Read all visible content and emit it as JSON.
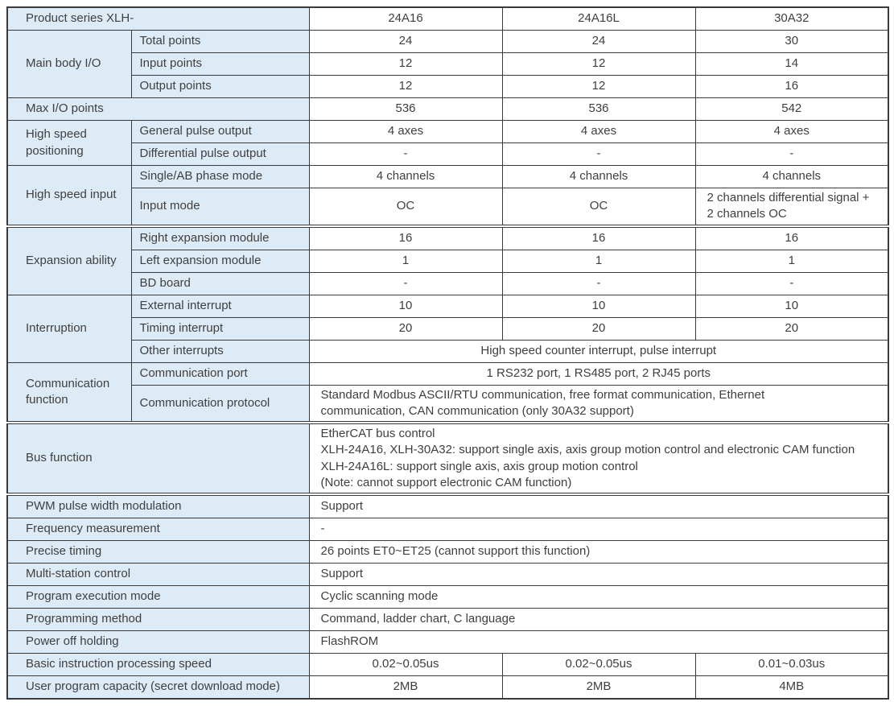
{
  "colors": {
    "label_bg": "#ddebf7",
    "border": "#3a3a3a",
    "text": "#3f3f3f"
  },
  "table": {
    "rows": [
      {
        "cells": [
          {
            "text": "Product series XLH-",
            "cs": 2,
            "kind": "label-full"
          },
          {
            "text": "24A16",
            "kind": "value"
          },
          {
            "text": "24A16L",
            "kind": "value"
          },
          {
            "text": "30A32",
            "kind": "value"
          }
        ]
      },
      {
        "cells": [
          {
            "text": "Main body I/O",
            "rs": 3,
            "kind": "label-group"
          },
          {
            "text": "Total points",
            "kind": "label-sub"
          },
          {
            "text": "24",
            "kind": "value"
          },
          {
            "text": "24",
            "kind": "value"
          },
          {
            "text": "30",
            "kind": "value"
          }
        ]
      },
      {
        "cells": [
          {
            "text": "Input points",
            "kind": "label-sub"
          },
          {
            "text": "12",
            "kind": "value"
          },
          {
            "text": "12",
            "kind": "value"
          },
          {
            "text": "14",
            "kind": "value"
          }
        ]
      },
      {
        "cells": [
          {
            "text": "Output points",
            "kind": "label-sub"
          },
          {
            "text": "12",
            "kind": "value"
          },
          {
            "text": "12",
            "kind": "value"
          },
          {
            "text": "16",
            "kind": "value"
          }
        ]
      },
      {
        "cells": [
          {
            "text": "Max I/O points",
            "cs": 2,
            "kind": "label-full"
          },
          {
            "text": "536",
            "kind": "value"
          },
          {
            "text": "536",
            "kind": "value"
          },
          {
            "text": "542",
            "kind": "value"
          }
        ]
      },
      {
        "cells": [
          {
            "text": "High speed positioning",
            "rs": 2,
            "kind": "label-group"
          },
          {
            "text": "General pulse output",
            "kind": "label-sub"
          },
          {
            "text": "4 axes",
            "kind": "value"
          },
          {
            "text": "4 axes",
            "kind": "value"
          },
          {
            "text": "4 axes",
            "kind": "value"
          }
        ]
      },
      {
        "cells": [
          {
            "text": "Differential pulse output",
            "kind": "label-sub"
          },
          {
            "text": "-",
            "kind": "value"
          },
          {
            "text": "-",
            "kind": "value"
          },
          {
            "text": "-",
            "kind": "value"
          }
        ]
      },
      {
        "cells": [
          {
            "text": "High speed input",
            "rs": 2,
            "kind": "label-group"
          },
          {
            "text": "Single/AB phase mode",
            "kind": "label-sub"
          },
          {
            "text": "4 channels",
            "kind": "value"
          },
          {
            "text": "4 channels",
            "kind": "value"
          },
          {
            "text": "4 channels",
            "kind": "value"
          }
        ]
      },
      {
        "cells": [
          {
            "text": "Input mode",
            "kind": "label-sub"
          },
          {
            "text": "OC",
            "kind": "value"
          },
          {
            "text": "OC",
            "kind": "value"
          },
          {
            "text": "2 channels differential signal +\n2 channels OC",
            "kind": "value-left"
          }
        ]
      },
      {
        "gap": true,
        "cells": [
          {
            "text": "Expansion ability",
            "rs": 3,
            "kind": "label-group"
          },
          {
            "text": "Right expansion module",
            "kind": "label-sub"
          },
          {
            "text": "16",
            "kind": "value"
          },
          {
            "text": "16",
            "kind": "value"
          },
          {
            "text": "16",
            "kind": "value"
          }
        ]
      },
      {
        "cells": [
          {
            "text": "Left expansion module",
            "kind": "label-sub"
          },
          {
            "text": "1",
            "kind": "value"
          },
          {
            "text": "1",
            "kind": "value"
          },
          {
            "text": "1",
            "kind": "value"
          }
        ]
      },
      {
        "cells": [
          {
            "text": "BD board",
            "kind": "label-sub"
          },
          {
            "text": "-",
            "kind": "value"
          },
          {
            "text": "-",
            "kind": "value"
          },
          {
            "text": "-",
            "kind": "value"
          }
        ]
      },
      {
        "cells": [
          {
            "text": "Interruption",
            "rs": 3,
            "kind": "label-group"
          },
          {
            "text": "External interrupt",
            "kind": "label-sub"
          },
          {
            "text": "10",
            "kind": "value"
          },
          {
            "text": "10",
            "kind": "value"
          },
          {
            "text": "10",
            "kind": "value"
          }
        ]
      },
      {
        "cells": [
          {
            "text": "Timing interrupt",
            "kind": "label-sub"
          },
          {
            "text": "20",
            "kind": "value"
          },
          {
            "text": "20",
            "kind": "value"
          },
          {
            "text": "20",
            "kind": "value"
          }
        ]
      },
      {
        "cells": [
          {
            "text": "Other interrupts",
            "kind": "label-sub"
          },
          {
            "text": "High speed counter interrupt, pulse interrupt",
            "cs": 3,
            "kind": "value"
          }
        ]
      },
      {
        "cells": [
          {
            "text": "Communication function",
            "rs": 2,
            "kind": "label-group"
          },
          {
            "text": "Communication port",
            "kind": "label-sub"
          },
          {
            "text": "1 RS232 port, 1 RS485 port, 2 RJ45 ports",
            "cs": 3,
            "kind": "value"
          }
        ]
      },
      {
        "cells": [
          {
            "text": "Communication protocol",
            "kind": "label-sub"
          },
          {
            "text": "Standard Modbus ASCII/RTU communication, free format communication, Ethernet\ncommunication, CAN communication (only 30A32 support)",
            "cs": 3,
            "kind": "value-left"
          }
        ]
      },
      {
        "gap": true,
        "cells": [
          {
            "text": "Bus function",
            "cs": 2,
            "kind": "label-full"
          },
          {
            "text": "EtherCAT bus control\nXLH-24A16, XLH-30A32: support single axis, axis group motion control and electronic CAM function\nXLH-24A16L: support single axis, axis group motion control\n(Note: cannot support electronic CAM function)",
            "cs": 3,
            "kind": "value-left"
          }
        ]
      },
      {
        "gap": true,
        "cells": [
          {
            "text": "PWM pulse width modulation",
            "cs": 2,
            "kind": "label-full"
          },
          {
            "text": "Support",
            "cs": 3,
            "kind": "value-left"
          }
        ]
      },
      {
        "cells": [
          {
            "text": "Frequency measurement",
            "cs": 2,
            "kind": "label-full"
          },
          {
            "text": "-",
            "cs": 3,
            "kind": "value-left"
          }
        ]
      },
      {
        "cells": [
          {
            "text": "Precise timing",
            "cs": 2,
            "kind": "label-full"
          },
          {
            "text": "26 points ET0~ET25 (cannot support this function)",
            "cs": 3,
            "kind": "value-left"
          }
        ]
      },
      {
        "cells": [
          {
            "text": "Multi-station control",
            "cs": 2,
            "kind": "label-full"
          },
          {
            "text": "Support",
            "cs": 3,
            "kind": "value-left"
          }
        ]
      },
      {
        "cells": [
          {
            "text": "Program execution mode",
            "cs": 2,
            "kind": "label-full"
          },
          {
            "text": "Cyclic scanning mode",
            "cs": 3,
            "kind": "value-left"
          }
        ]
      },
      {
        "cells": [
          {
            "text": "Programming method",
            "cs": 2,
            "kind": "label-full"
          },
          {
            "text": "Command, ladder chart, C language",
            "cs": 3,
            "kind": "value-left"
          }
        ]
      },
      {
        "cells": [
          {
            "text": "Power off holding",
            "cs": 2,
            "kind": "label-full"
          },
          {
            "text": "FlashROM",
            "cs": 3,
            "kind": "value-left"
          }
        ]
      },
      {
        "cells": [
          {
            "text": "Basic instruction processing speed",
            "cs": 2,
            "kind": "label-full"
          },
          {
            "text": "0.02~0.05us",
            "kind": "value"
          },
          {
            "text": "0.02~0.05us",
            "kind": "value"
          },
          {
            "text": "0.01~0.03us",
            "kind": "value"
          }
        ]
      },
      {
        "cells": [
          {
            "text": "User program capacity (secret download mode)",
            "cs": 2,
            "kind": "label-full"
          },
          {
            "text": "2MB",
            "kind": "value"
          },
          {
            "text": "2MB",
            "kind": "value"
          },
          {
            "text": "4MB",
            "kind": "value"
          }
        ]
      }
    ]
  }
}
